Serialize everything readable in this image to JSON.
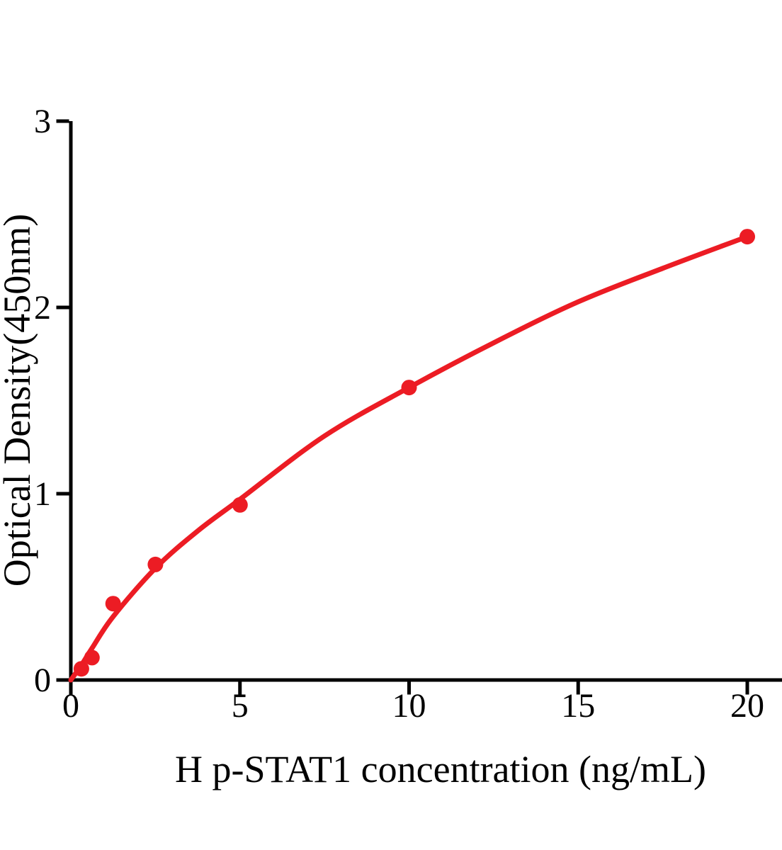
{
  "figure": {
    "kind": "ELISA standard curve plot",
    "background": "#ffffff"
  },
  "chart_data": {
    "type": "scatter",
    "title": "",
    "xlabel": "H p-STAT1 concentration (ng/mL)",
    "ylabel": "Optical Density(450nm)",
    "xlim": [
      0,
      20
    ],
    "ylim": [
      0,
      3
    ],
    "x_ticks": [
      0,
      5,
      10,
      15,
      20
    ],
    "y_ticks": [
      0,
      1,
      2,
      3
    ],
    "grid": false,
    "legend": "none",
    "series": [
      {
        "name": "standard-points",
        "marker": "filled-circle",
        "color": "#EC1C24",
        "x": [
          0.3125,
          0.625,
          1.25,
          2.5,
          5,
          10,
          20
        ],
        "y": [
          0.06,
          0.12,
          0.41,
          0.62,
          0.94,
          1.57,
          2.38
        ]
      },
      {
        "name": "fitted-curve",
        "marker": "none",
        "style": "smooth-line",
        "color": "#EC1C24",
        "x": [
          0,
          0.3125,
          0.625,
          1.25,
          2.5,
          3.75,
          5,
          7.5,
          10,
          12.5,
          15,
          17.5,
          20
        ],
        "y": [
          0,
          0.08,
          0.17,
          0.34,
          0.6,
          0.8,
          0.97,
          1.31,
          1.57,
          1.81,
          2.03,
          2.21,
          2.38
        ]
      }
    ],
    "colors": {
      "curve": "#EC1C24",
      "points": "#EC1C24",
      "axis": "#000000"
    }
  }
}
